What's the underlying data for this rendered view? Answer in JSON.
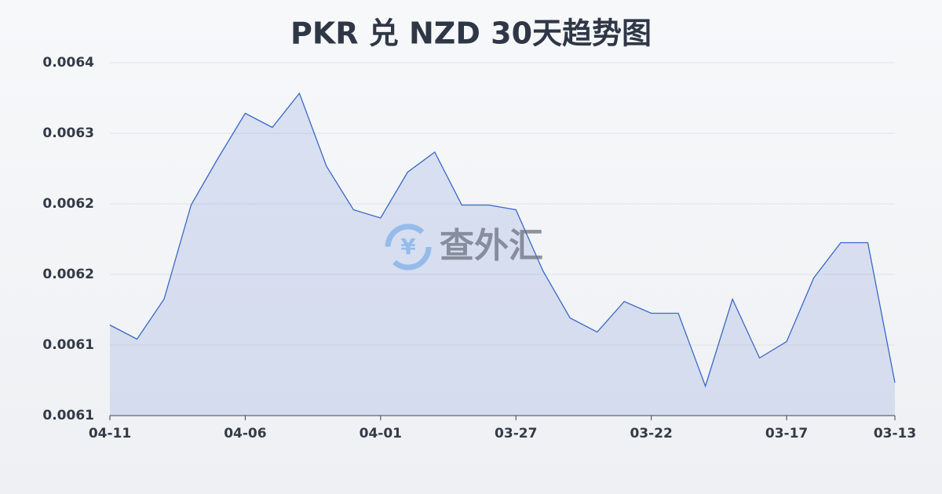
{
  "chart_data": {
    "type": "area",
    "title": "PKR 兑 NZD 30天趋势图",
    "watermark": "查外汇",
    "categories": [
      "04-11",
      null,
      null,
      null,
      null,
      "04-06",
      null,
      null,
      null,
      null,
      "04-01",
      null,
      null,
      null,
      null,
      "03-27",
      null,
      null,
      null,
      null,
      "03-22",
      null,
      null,
      null,
      null,
      "03-17",
      null,
      null,
      null,
      "03-13"
    ],
    "series": [
      {
        "color": "#3a68c6",
        "values": [
          0.006137,
          0.006125,
          0.006159,
          0.006239,
          0.006279,
          0.006317,
          0.006305,
          0.006334,
          0.006272,
          0.006235,
          0.006228,
          0.006267,
          0.006284,
          0.006239,
          0.006239,
          0.006235,
          0.006183,
          0.006143,
          0.006131,
          0.006157,
          0.006147,
          0.006147,
          0.006085,
          0.006159,
          0.006109,
          0.006123,
          0.006177,
          0.006207,
          0.006207,
          0.006088
        ]
      }
    ],
    "ylim": [
      0.00606,
      0.00636
    ],
    "yticks": [
      {
        "value": 0.00606,
        "label": "0.0061"
      },
      {
        "value": 0.00612,
        "label": "0.0061"
      },
      {
        "value": 0.00618,
        "label": "0.0062"
      },
      {
        "value": 0.00624,
        "label": "0.0062"
      },
      {
        "value": 0.0063,
        "label": "0.0063"
      },
      {
        "value": 0.00636,
        "label": "0.0064"
      }
    ],
    "grid": true
  }
}
